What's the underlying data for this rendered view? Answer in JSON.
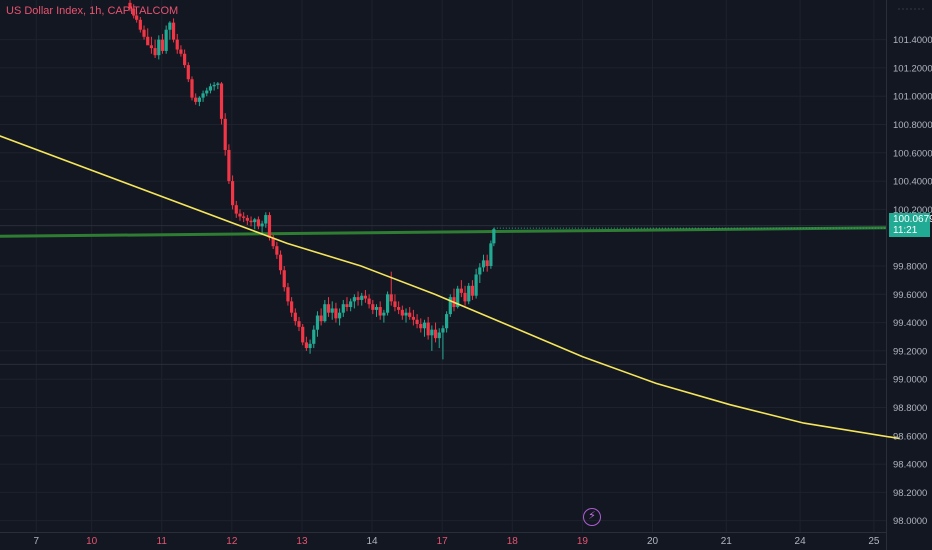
{
  "header": {
    "title": "US Dollar Index, 1h, CAPITALCOM"
  },
  "price_badge": {
    "price": "100.0679",
    "countdown": "11:21",
    "color": "#22ab94"
  },
  "icons": {
    "flash": "lightning-icon"
  },
  "colors": {
    "background": "#131722",
    "grid": "#1e222d",
    "up": "#22ab94",
    "down": "#f23645",
    "trendline": "#f5e55b",
    "resistance": "#2e7d32",
    "session_label": "#e9536f"
  },
  "chart_data": {
    "type": "candlestick",
    "title": "US Dollar Index, 1h, CAPITALCOM",
    "ylim": [
      97.92,
      101.68
    ],
    "y_ticks": [
      "101.4000",
      "101.2000",
      "101.0000",
      "100.8000",
      "100.6000",
      "100.4000",
      "100.2000",
      "99.8000",
      "99.6000",
      "99.4000",
      "99.2000",
      "99.0000",
      "98.8000",
      "98.6000",
      "98.4000",
      "98.2000",
      "98.0000"
    ],
    "x_ticks": [
      {
        "label": "7",
        "x": 0.6,
        "session": false
      },
      {
        "label": "10",
        "x": 1.35,
        "session": true
      },
      {
        "label": "11",
        "x": 2.3,
        "session": true
      },
      {
        "label": "12",
        "x": 3.25,
        "session": true
      },
      {
        "label": "13",
        "x": 4.2,
        "session": true
      },
      {
        "label": "14",
        "x": 5.15,
        "session": false
      },
      {
        "label": "17",
        "x": 6.1,
        "session": true
      },
      {
        "label": "18",
        "x": 7.05,
        "session": true
      },
      {
        "label": "19",
        "x": 8.0,
        "session": true
      },
      {
        "label": "20",
        "x": 8.95,
        "session": false
      },
      {
        "label": "21",
        "x": 9.95,
        "session": false
      },
      {
        "label": "24",
        "x": 10.95,
        "session": false
      },
      {
        "label": "25",
        "x": 11.95,
        "session": false
      }
    ],
    "x_per_pixel_note": "",
    "horizontal_lines": [
      {
        "name": "",
        "y1": 100.01,
        "y2": 100.07,
        "color": "#2e7d32"
      },
      {
        "name": "",
        "y": 99.105,
        "color": "#2a2e39"
      },
      {
        "name": "",
        "y": 100.085,
        "color": "#2a2e39"
      }
    ],
    "trendline": {
      "points": [
        [
          0.0,
          100.74
        ],
        [
          4.0,
          99.96
        ],
        [
          5.0,
          99.8
        ],
        [
          6.0,
          99.6
        ],
        [
          7.0,
          99.38
        ],
        [
          8.0,
          99.16
        ],
        [
          9.0,
          98.97
        ],
        [
          10.0,
          98.82
        ],
        [
          11.0,
          98.69
        ],
        [
          12.3,
          98.58
        ]
      ]
    },
    "current_price": 100.0679,
    "candles": [
      [
        1.87,
        101.66,
        101.68,
        101.6,
        101.62
      ],
      [
        1.92,
        101.62,
        101.65,
        101.55,
        101.57
      ],
      [
        1.96,
        101.57,
        101.6,
        101.52,
        101.54
      ],
      [
        2.01,
        101.54,
        101.56,
        101.45,
        101.47
      ],
      [
        2.06,
        101.47,
        101.5,
        101.4,
        101.42
      ],
      [
        2.11,
        101.42,
        101.48,
        101.38,
        101.36
      ],
      [
        2.16,
        101.36,
        101.42,
        101.3,
        101.34
      ],
      [
        2.21,
        101.34,
        101.4,
        101.27,
        101.29
      ],
      [
        2.26,
        101.29,
        101.43,
        101.26,
        101.4
      ],
      [
        2.31,
        101.4,
        101.44,
        101.3,
        101.32
      ],
      [
        2.36,
        101.32,
        101.5,
        101.3,
        101.47
      ],
      [
        2.41,
        101.47,
        101.53,
        101.4,
        101.52
      ],
      [
        2.46,
        101.52,
        101.55,
        101.38,
        101.4
      ],
      [
        2.51,
        101.4,
        101.44,
        101.3,
        101.33
      ],
      [
        2.56,
        101.33,
        101.36,
        101.28,
        101.3
      ],
      [
        2.61,
        101.3,
        101.33,
        101.2,
        101.22
      ],
      [
        2.66,
        101.22,
        101.24,
        101.1,
        101.12
      ],
      [
        2.71,
        101.12,
        101.14,
        100.97,
        100.99
      ],
      [
        2.76,
        100.99,
        101.02,
        100.94,
        100.96
      ],
      [
        2.81,
        100.96,
        101.0,
        100.93,
        100.99
      ],
      [
        2.86,
        100.99,
        101.04,
        100.96,
        101.02
      ],
      [
        2.91,
        101.02,
        101.06,
        101.0,
        101.04
      ],
      [
        2.96,
        101.04,
        101.09,
        101.02,
        101.07
      ],
      [
        3.01,
        101.07,
        101.1,
        101.04,
        101.08
      ],
      [
        3.06,
        101.08,
        101.1,
        101.05,
        101.09
      ],
      [
        3.11,
        101.09,
        101.1,
        100.8,
        100.84
      ],
      [
        3.16,
        100.84,
        100.88,
        100.58,
        100.62
      ],
      [
        3.21,
        100.62,
        100.66,
        100.38,
        100.4
      ],
      [
        3.26,
        100.4,
        100.44,
        100.2,
        100.23
      ],
      [
        3.31,
        100.23,
        100.26,
        100.14,
        100.17
      ],
      [
        3.36,
        100.17,
        100.2,
        100.12,
        100.15
      ],
      [
        3.41,
        100.15,
        100.18,
        100.11,
        100.14
      ],
      [
        3.46,
        100.14,
        100.16,
        100.09,
        100.12
      ],
      [
        3.51,
        100.12,
        100.15,
        100.08,
        100.11
      ],
      [
        3.56,
        100.11,
        100.14,
        100.06,
        100.13
      ],
      [
        3.61,
        100.13,
        100.15,
        100.06,
        100.08
      ],
      [
        3.66,
        100.08,
        100.12,
        100.03,
        100.1
      ],
      [
        3.71,
        100.1,
        100.18,
        100.07,
        100.16
      ],
      [
        3.76,
        100.16,
        100.18,
        99.98,
        100.0
      ],
      [
        3.81,
        100.0,
        100.02,
        99.92,
        99.94
      ],
      [
        3.86,
        99.94,
        99.97,
        99.85,
        99.88
      ],
      [
        3.91,
        99.88,
        99.91,
        99.74,
        99.77
      ],
      [
        3.96,
        99.77,
        99.8,
        99.62,
        99.65
      ],
      [
        4.01,
        99.65,
        99.68,
        99.52,
        99.55
      ],
      [
        4.06,
        99.55,
        99.58,
        99.44,
        99.47
      ],
      [
        4.11,
        99.47,
        99.5,
        99.38,
        99.41
      ],
      [
        4.16,
        99.41,
        99.44,
        99.34,
        99.37
      ],
      [
        4.21,
        99.37,
        99.39,
        99.24,
        99.26
      ],
      [
        4.26,
        99.26,
        99.3,
        99.2,
        99.22
      ],
      [
        4.31,
        99.22,
        99.28,
        99.18,
        99.25
      ],
      [
        4.36,
        99.25,
        99.38,
        99.22,
        99.35
      ],
      [
        4.41,
        99.35,
        99.48,
        99.3,
        99.45
      ],
      [
        4.46,
        99.45,
        99.5,
        99.38,
        99.41
      ],
      [
        4.51,
        99.41,
        99.56,
        99.4,
        99.53
      ],
      [
        4.56,
        99.53,
        99.58,
        99.44,
        99.47
      ],
      [
        4.61,
        99.47,
        99.55,
        99.42,
        99.5
      ],
      [
        4.66,
        99.5,
        99.54,
        99.4,
        99.43
      ],
      [
        4.71,
        99.43,
        99.5,
        99.38,
        99.47
      ],
      [
        4.76,
        99.47,
        99.56,
        99.44,
        99.53
      ],
      [
        4.81,
        99.53,
        99.58,
        99.48,
        99.51
      ],
      [
        4.86,
        99.51,
        99.57,
        99.48,
        99.55
      ],
      [
        4.91,
        99.55,
        99.6,
        99.5,
        99.58
      ],
      [
        4.96,
        99.58,
        99.62,
        99.52,
        99.56
      ],
      [
        5.01,
        99.56,
        99.61,
        99.52,
        99.59
      ],
      [
        5.06,
        99.59,
        99.63,
        99.54,
        99.57
      ],
      [
        5.11,
        99.57,
        99.6,
        99.5,
        99.53
      ],
      [
        5.16,
        99.53,
        99.56,
        99.46,
        99.49
      ],
      [
        5.21,
        99.49,
        99.53,
        99.44,
        99.51
      ],
      [
        5.26,
        99.51,
        99.55,
        99.42,
        99.45
      ],
      [
        5.31,
        99.45,
        99.49,
        99.4,
        99.47
      ],
      [
        5.36,
        99.47,
        99.62,
        99.45,
        99.6
      ],
      [
        5.41,
        99.6,
        99.76,
        99.52,
        99.55
      ],
      [
        5.46,
        99.55,
        99.6,
        99.48,
        99.51
      ],
      [
        5.51,
        99.51,
        99.55,
        99.46,
        99.49
      ],
      [
        5.56,
        99.49,
        99.52,
        99.42,
        99.45
      ],
      [
        5.61,
        99.45,
        99.5,
        99.4,
        99.47
      ],
      [
        5.66,
        99.47,
        99.51,
        99.42,
        99.44
      ],
      [
        5.71,
        99.44,
        99.49,
        99.38,
        99.42
      ],
      [
        5.76,
        99.42,
        99.46,
        99.36,
        99.39
      ],
      [
        5.81,
        99.39,
        99.43,
        99.33,
        99.36
      ],
      [
        5.86,
        99.36,
        99.42,
        99.3,
        99.4
      ],
      [
        5.91,
        99.4,
        99.44,
        99.28,
        99.31
      ],
      [
        5.96,
        99.31,
        99.38,
        99.2,
        99.35
      ],
      [
        6.01,
        99.35,
        99.4,
        99.26,
        99.29
      ],
      [
        6.06,
        99.29,
        99.36,
        99.22,
        99.33
      ],
      [
        6.11,
        99.33,
        99.38,
        99.14,
        99.36
      ],
      [
        6.16,
        99.36,
        99.48,
        99.33,
        99.46
      ],
      [
        6.21,
        99.46,
        99.6,
        99.44,
        99.58
      ],
      [
        6.26,
        99.58,
        99.64,
        99.48,
        99.51
      ],
      [
        6.31,
        99.51,
        99.66,
        99.5,
        99.64
      ],
      [
        6.36,
        99.64,
        99.7,
        99.58,
        99.61
      ],
      [
        6.41,
        99.61,
        99.66,
        99.52,
        99.55
      ],
      [
        6.46,
        99.55,
        99.68,
        99.53,
        99.66
      ],
      [
        6.51,
        99.66,
        99.7,
        99.56,
        99.59
      ],
      [
        6.56,
        99.59,
        99.78,
        99.57,
        99.74
      ],
      [
        6.61,
        99.74,
        99.82,
        99.68,
        99.79
      ],
      [
        6.66,
        99.79,
        99.88,
        99.76,
        99.84
      ],
      [
        6.71,
        99.84,
        99.88,
        99.76,
        99.8
      ],
      [
        6.76,
        99.8,
        99.98,
        99.78,
        99.96
      ],
      [
        6.8,
        99.96,
        100.07,
        99.94,
        100.06
      ]
    ]
  }
}
